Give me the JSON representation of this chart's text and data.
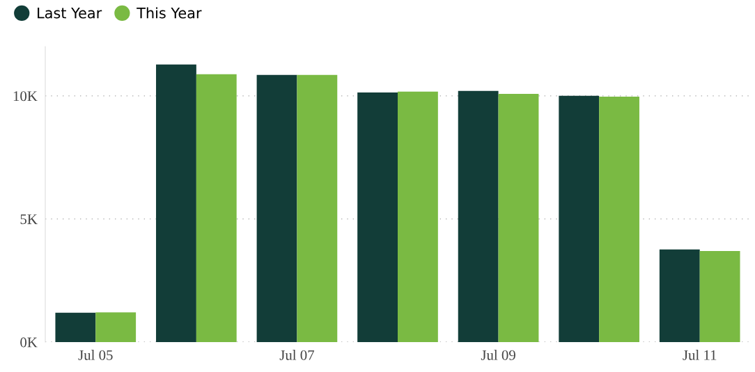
{
  "chart_data": {
    "type": "bar",
    "categories": [
      "Jul 05",
      null,
      "Jul 07",
      null,
      "Jul 09",
      null,
      "Jul 11"
    ],
    "series": [
      {
        "name": "Last Year",
        "color": "#123d38",
        "values": [
          1190,
          11270,
          10850,
          10140,
          10200,
          10000,
          3760
        ]
      },
      {
        "name": "This Year",
        "color": "#7aba43",
        "values": [
          1210,
          10880,
          10850,
          10170,
          10080,
          9970,
          3700
        ]
      }
    ],
    "ylim": [
      0,
      12000
    ],
    "yticks": [
      {
        "value": 0,
        "label": "0K"
      },
      {
        "value": 5000,
        "label": "5K"
      },
      {
        "value": 10000,
        "label": "10K"
      }
    ],
    "grid": "y",
    "legend": "top left"
  }
}
